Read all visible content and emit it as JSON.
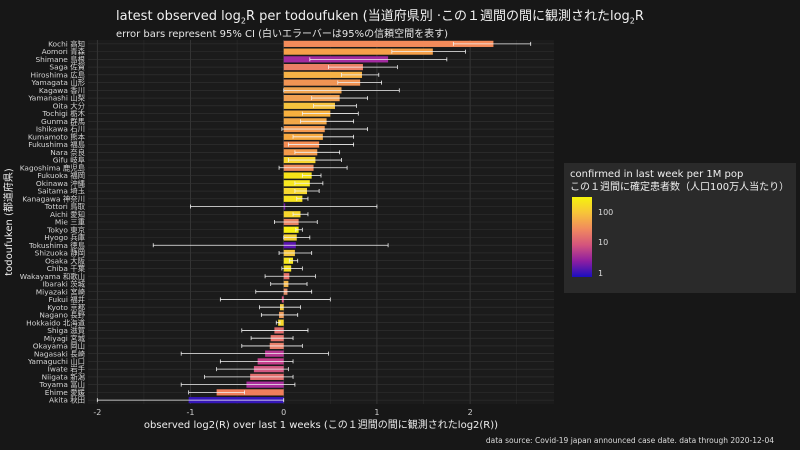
{
  "title": "latest observed log",
  "title_sub": "2",
  "title_rest": "R per todoufuken (当道府県別 ·この１週間の間に観測されたlog",
  "title_sub2": "2",
  "title_end": "R",
  "subtitle": "error bars represent 95% CI (白いエラーバーは95%の信頼空間を表す)",
  "caption": "data source: Covid-19 japan announced case date. data through 2020-12-04",
  "legend": {
    "title_line1": "confirmed in last week per 1M pop",
    "title_line2": "この１週間に確定患者数（人口100万人当たり）",
    "ticks": [
      "100",
      "10",
      "1"
    ]
  },
  "chart_data": {
    "type": "bar",
    "orientation": "horizontal",
    "xlabel": "observed log2(R) over last 1 weeks (この１週間の間に観測されたlog2(R))",
    "ylabel": "todoufuken (都道府県)",
    "xlim": [
      -2.1,
      2.9
    ],
    "xticks": [
      -2,
      -1,
      0,
      1,
      2
    ],
    "grid": true,
    "legend_position": "right",
    "categories": [
      "Kochi 高知",
      "Aomori 青森",
      "Shimane 島根",
      "Saga 佐賀",
      "Hiroshima 広島",
      "Yamagata 山形",
      "Kagawa 香川",
      "Yamanashi 山梨",
      "Oita 大分",
      "Tochigi 栃木",
      "Gunma 群馬",
      "Ishikawa 石川",
      "Kumamoto 熊本",
      "Fukushima 福島",
      "Nara 奈良",
      "Gifu 岐阜",
      "Kagoshima 鹿児島",
      "Fukuoka 福岡",
      "Okinawa 沖縄",
      "Saitama 埼玉",
      "Kanagawa 神奈川",
      "Tottori 鳥取",
      "Aichi 愛知",
      "Mie 三重",
      "Tokyo 東京",
      "Hyogo 兵庫",
      "Tokushima 徳島",
      "Shizuoka 静岡",
      "Osaka 大阪",
      "Chiba 千葉",
      "Wakayama 和歌山",
      "Ibaraki 茨城",
      "Miyazaki 宮崎",
      "Fukui 福井",
      "Kyoto 京都",
      "Nagano 長野",
      "Hokkaido 北海道",
      "Shiga 滋賀",
      "Miyagi 宮城",
      "Okayama 岡山",
      "Nagasaki 長崎",
      "Yamaguchi 山口",
      "Iwate 岩手",
      "Niigata 新潟",
      "Toyama 富山",
      "Ehime 愛媛",
      "Akita 秋田"
    ],
    "values": [
      2.25,
      1.6,
      1.12,
      0.85,
      0.84,
      0.82,
      0.62,
      0.6,
      0.55,
      0.5,
      0.46,
      0.44,
      0.42,
      0.38,
      0.36,
      0.34,
      0.32,
      0.3,
      0.28,
      0.25,
      0.2,
      0.0,
      0.18,
      0.16,
      0.16,
      0.14,
      0.13,
      0.12,
      0.1,
      0.08,
      0.06,
      0.05,
      0.04,
      -0.02,
      -0.04,
      -0.05,
      -0.06,
      -0.1,
      -0.14,
      -0.15,
      -0.2,
      -0.28,
      -0.32,
      -0.36,
      -0.4,
      -0.72,
      -1.02
    ],
    "ci_low": [
      1.82,
      1.16,
      0.28,
      0.48,
      0.62,
      0.58,
      0.0,
      0.3,
      0.32,
      0.2,
      0.18,
      -0.02,
      0.1,
      0.05,
      0.12,
      0.05,
      -0.05,
      0.2,
      0.12,
      0.12,
      0.14,
      -1.0,
      0.1,
      -0.1,
      0.13,
      0.0,
      -1.4,
      -0.05,
      0.06,
      -0.02,
      -0.2,
      -0.14,
      -0.3,
      -0.68,
      -0.26,
      -0.24,
      -0.08,
      -0.45,
      -0.35,
      -0.45,
      -1.1,
      -0.68,
      -0.72,
      -0.85,
      -1.1,
      -1.02,
      -2.0
    ],
    "ci_high": [
      2.65,
      1.95,
      1.75,
      1.22,
      1.02,
      1.05,
      1.24,
      0.9,
      0.78,
      0.8,
      0.75,
      0.9,
      0.75,
      0.75,
      0.6,
      0.62,
      0.68,
      0.4,
      0.42,
      0.38,
      0.26,
      1.0,
      0.26,
      0.36,
      0.2,
      0.28,
      1.12,
      0.3,
      0.15,
      0.2,
      0.34,
      0.25,
      0.3,
      0.5,
      0.18,
      0.15,
      -0.04,
      0.26,
      0.1,
      0.2,
      0.48,
      0.1,
      0.05,
      0.1,
      0.12,
      -0.42,
      0.0
    ],
    "colors": [
      "#f48b5a",
      "#f6a049",
      "#a32ba0",
      "#eb7f66",
      "#f7b346",
      "#f19454",
      "#f0a450",
      "#f0a052",
      "#f5c33d",
      "#f7b03e",
      "#f2a848",
      "#f2984f",
      "#f5a840",
      "#f58c53",
      "#f49a4b",
      "#f8d530",
      "#ee8a5c",
      "#f7e318",
      "#f8e821",
      "#f7d830",
      "#f7e320",
      "#7a1ca6",
      "#f7d62c",
      "#e88260",
      "#f8f012",
      "#f4cf36",
      "#5c14b0",
      "#f5c43b",
      "#f8e821",
      "#f5e123",
      "#e27066",
      "#f3b548",
      "#e6926c",
      "#d6537c",
      "#f2c83c",
      "#ee9c5a",
      "#f8d82a",
      "#e06d6e",
      "#e5736a",
      "#e9806a",
      "#b73792",
      "#c33d8a",
      "#d25881",
      "#e26f6e",
      "#a82e9c",
      "#f07f5c",
      "#3516b8"
    ]
  }
}
